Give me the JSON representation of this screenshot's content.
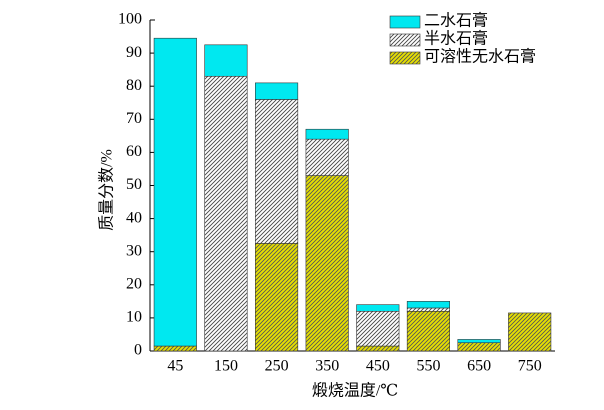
{
  "chart_data": {
    "type": "stacked_bar",
    "x_label": "煅烧温度/℃",
    "y_label": "质量分数/%",
    "categories": [
      "45",
      "150",
      "250",
      "350",
      "450",
      "550",
      "650",
      "750"
    ],
    "series": [
      {
        "name": "可溶性无水石膏",
        "color": "#e6e000",
        "hatch": true,
        "values": [
          1.5,
          0,
          32.5,
          53,
          1.5,
          12,
          2.5,
          11.5
        ]
      },
      {
        "name": "半水石膏",
        "color": "#ffffff",
        "hatch": true,
        "values": [
          0,
          83,
          43.5,
          11,
          10.5,
          1,
          0,
          0
        ]
      },
      {
        "name": "二水石膏",
        "color": "#00e8f0",
        "hatch": false,
        "values": [
          93,
          9.5,
          5,
          3,
          2,
          2,
          1,
          0
        ]
      }
    ],
    "ylim": [
      0,
      100
    ],
    "yticks": [
      0,
      10,
      20,
      30,
      40,
      50,
      60,
      70,
      80,
      90,
      100
    ]
  }
}
